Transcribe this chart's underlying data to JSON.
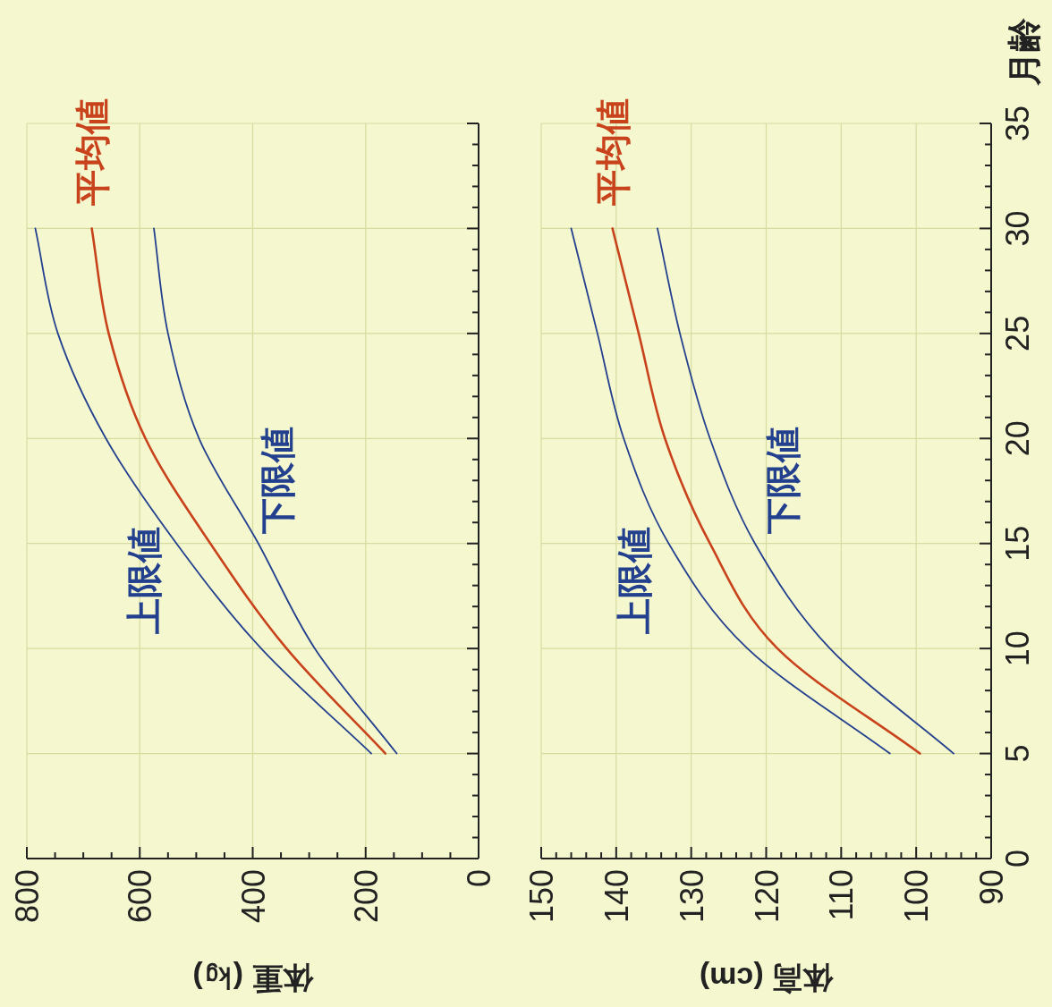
{
  "chart_data": [
    {
      "type": "line",
      "xlabel": "体重 (㎏)",
      "xlim": [
        800,
        0
      ],
      "xticks": [
        800,
        {
          "value": 750,
          "label": null
        },
        {
          "value": 700,
          "label": null
        },
        {
          "value": 650,
          "label": null
        },
        600,
        {
          "value": 550,
          "label": null
        },
        {
          "value": 500,
          "label": null
        },
        {
          "value": 450,
          "label": null
        },
        400,
        {
          "value": 350,
          "label": null
        },
        {
          "value": 300,
          "label": null
        },
        {
          "value": 250,
          "label": null
        },
        200,
        {
          "value": 150,
          "label": null
        },
        {
          "value": 100,
          "label": null
        },
        {
          "value": 50,
          "label": null
        },
        0
      ],
      "ylim": [
        0,
        35
      ],
      "yticks": [
        0,
        {
          "value": 1,
          "label": null
        },
        {
          "value": 2,
          "label": null
        },
        {
          "value": 3,
          "label": null
        },
        {
          "value": 4,
          "label": null
        },
        {
          "value": 5,
          "label": null
        },
        {
          "value": 6,
          "label": null
        },
        {
          "value": 7,
          "label": null
        },
        {
          "value": 8,
          "label": null
        },
        {
          "value": 9,
          "label": null
        },
        {
          "value": 10,
          "label": null
        },
        {
          "value": 11,
          "label": null
        },
        {
          "value": 12,
          "label": null
        },
        {
          "value": 13,
          "label": null
        },
        {
          "value": 14,
          "label": null
        },
        {
          "value": 15,
          "label": null
        },
        {
          "value": 16,
          "label": null
        },
        {
          "value": 17,
          "label": null
        },
        {
          "value": 18,
          "label": null
        },
        {
          "value": 19,
          "label": null
        },
        {
          "value": 20,
          "label": null
        },
        {
          "value": 21,
          "label": null
        },
        {
          "value": 22,
          "label": null
        },
        {
          "value": 23,
          "label": null
        },
        {
          "value": 24,
          "label": null
        },
        {
          "value": 25,
          "label": null
        },
        {
          "value": 26,
          "label": null
        },
        {
          "value": 27,
          "label": null
        },
        {
          "value": 28,
          "label": null
        },
        {
          "value": 29,
          "label": null
        },
        {
          "value": 30,
          "label": null
        },
        {
          "value": 31,
          "label": null
        },
        {
          "value": 32,
          "label": null
        },
        {
          "value": 33,
          "label": null
        },
        {
          "value": 34,
          "label": null
        },
        {
          "value": 35,
          "label": null
        }
      ],
      "grid": true,
      "tick_labels": "x",
      "series": [
        {
          "name": "上限値",
          "color": "#23408e",
          "x": [
            190,
            385,
            535,
            660,
            745,
            785
          ],
          "values": [
            5,
            10,
            15,
            20,
            25,
            30
          ]
        },
        {
          "name": "平均値",
          "color": "#c8431c",
          "x": [
            165,
            340,
            475,
            590,
            655,
            685
          ],
          "values": [
            5,
            10,
            15,
            20,
            25,
            30
          ]
        },
        {
          "name": "下限値",
          "color": "#23408e",
          "x": [
            145,
            290,
            390,
            495,
            550,
            575
          ],
          "values": [
            5,
            10,
            15,
            20,
            25,
            30
          ]
        }
      ]
    },
    {
      "type": "line",
      "xlabel": "体高 (cm)",
      "ylabel": "月齢",
      "xlim": [
        150,
        90
      ],
      "xticks": [
        150,
        {
          "value": 148,
          "label": null
        },
        {
          "value": 146,
          "label": null
        },
        {
          "value": 144,
          "label": null
        },
        {
          "value": 142,
          "label": null
        },
        140,
        {
          "value": 138,
          "label": null
        },
        {
          "value": 136,
          "label": null
        },
        {
          "value": 134,
          "label": null
        },
        {
          "value": 132,
          "label": null
        },
        130,
        {
          "value": 128,
          "label": null
        },
        {
          "value": 126,
          "label": null
        },
        {
          "value": 124,
          "label": null
        },
        {
          "value": 122,
          "label": null
        },
        120,
        {
          "value": 118,
          "label": null
        },
        {
          "value": 116,
          "label": null
        },
        {
          "value": 114,
          "label": null
        },
        {
          "value": 112,
          "label": null
        },
        110,
        {
          "value": 108,
          "label": null
        },
        {
          "value": 106,
          "label": null
        },
        {
          "value": 104,
          "label": null
        },
        {
          "value": 102,
          "label": null
        },
        100,
        {
          "value": 98,
          "label": null
        },
        {
          "value": 96,
          "label": null
        },
        {
          "value": 94,
          "label": null
        },
        {
          "value": 92,
          "label": null
        },
        90
      ],
      "ylim": [
        0,
        35
      ],
      "yticks": [
        0,
        {
          "value": 1,
          "label": null
        },
        {
          "value": 2,
          "label": null
        },
        {
          "value": 3,
          "label": null
        },
        {
          "value": 4,
          "label": null
        },
        5,
        {
          "value": 6,
          "label": null
        },
        {
          "value": 7,
          "label": null
        },
        {
          "value": 8,
          "label": null
        },
        {
          "value": 9,
          "label": null
        },
        10,
        {
          "value": 11,
          "label": null
        },
        {
          "value": 12,
          "label": null
        },
        {
          "value": 13,
          "label": null
        },
        {
          "value": 14,
          "label": null
        },
        15,
        {
          "value": 16,
          "label": null
        },
        {
          "value": 17,
          "label": null
        },
        {
          "value": 18,
          "label": null
        },
        {
          "value": 19,
          "label": null
        },
        20,
        {
          "value": 21,
          "label": null
        },
        {
          "value": 22,
          "label": null
        },
        {
          "value": 23,
          "label": null
        },
        {
          "value": 24,
          "label": null
        },
        25,
        {
          "value": 26,
          "label": null
        },
        {
          "value": 27,
          "label": null
        },
        {
          "value": 28,
          "label": null
        },
        {
          "value": 29,
          "label": null
        },
        30,
        {
          "value": 31,
          "label": null
        },
        {
          "value": 32,
          "label": null
        },
        {
          "value": 33,
          "label": null
        },
        {
          "value": 34,
          "label": null
        },
        35
      ],
      "grid": true,
      "series": [
        {
          "name": "上限値",
          "color": "#23408e",
          "x": [
            103.5,
            122.5,
            133,
            139,
            142.5,
            146
          ],
          "values": [
            5,
            10,
            15,
            20,
            25,
            30
          ]
        },
        {
          "name": "平均値",
          "color": "#c8431c",
          "x": [
            99.5,
            118.5,
            127.5,
            133.5,
            137,
            140.5
          ],
          "values": [
            5,
            10,
            15,
            20,
            25,
            30
          ]
        },
        {
          "name": "下限値",
          "color": "#23408e",
          "x": [
            95,
            111.5,
            121.5,
            127.5,
            131.5,
            134.5
          ],
          "values": [
            5,
            10,
            15,
            20,
            25,
            30
          ]
        }
      ]
    }
  ]
}
